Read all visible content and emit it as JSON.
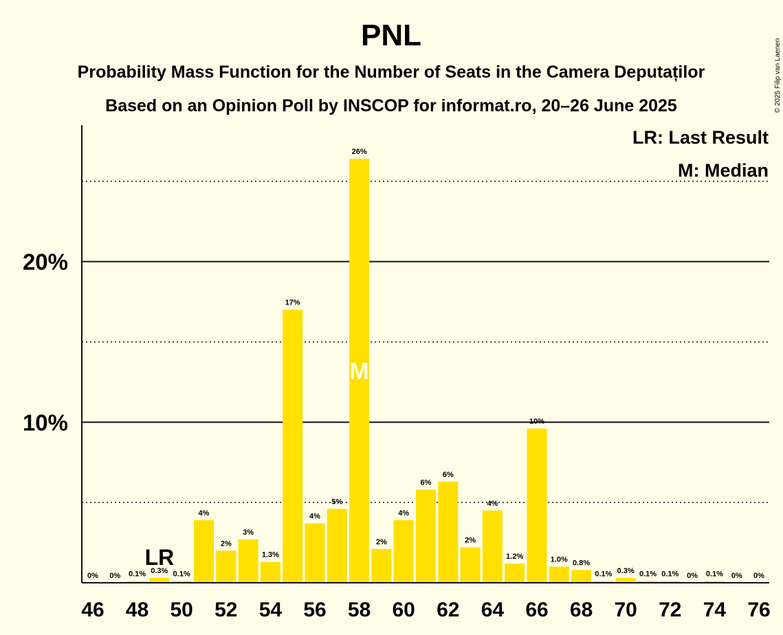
{
  "chart_data": {
    "type": "bar",
    "title": "PNL",
    "subtitle": "Probability Mass Function for the Number of Seats in the Camera Deputaților",
    "subtitle2": "Based on an Opinion Poll by INSCOP for informat.ro, 20–26 June 2025",
    "copyright": "© 2025 Filip van Laenen",
    "legend": {
      "position": "top-right",
      "items": [
        "LR: Last Result",
        "M: Median"
      ]
    },
    "bar_color": "#FFE000",
    "x": [
      46,
      47,
      48,
      49,
      50,
      51,
      52,
      53,
      54,
      55,
      56,
      57,
      58,
      59,
      60,
      61,
      62,
      63,
      64,
      65,
      66,
      67,
      68,
      69,
      70,
      71,
      72,
      73,
      74,
      75,
      76
    ],
    "values": [
      0,
      0,
      0.1,
      0.3,
      0.1,
      3.9,
      2.0,
      2.7,
      1.3,
      17.0,
      3.7,
      4.6,
      26.4,
      2.1,
      3.9,
      5.8,
      6.3,
      2.2,
      4.5,
      1.2,
      9.6,
      1.0,
      0.8,
      0.1,
      0.3,
      0.1,
      0.1,
      0,
      0.1,
      0,
      0
    ],
    "value_labels": [
      "0%",
      "0%",
      "0.1%",
      "0.3%",
      "0.1%",
      "4%",
      "2%",
      "3%",
      "1.3%",
      "17%",
      "4%",
      "5%",
      "26%",
      "2%",
      "4%",
      "6%",
      "6%",
      "2%",
      "4%",
      "1.2%",
      "10%",
      "1.0%",
      "0.8%",
      "0.1%",
      "0.3%",
      "0.1%",
      "0.1%",
      "0%",
      "0.1%",
      "0%",
      "0%"
    ],
    "xticks": [
      46,
      48,
      50,
      52,
      54,
      56,
      58,
      60,
      62,
      64,
      66,
      68,
      70,
      72,
      74,
      76
    ],
    "yticks": [
      {
        "value": 10,
        "label": "10%"
      },
      {
        "value": 20,
        "label": "20%"
      }
    ],
    "ylim": [
      0,
      28.5
    ],
    "grid": {
      "solid": [
        10,
        20
      ],
      "dotted": [
        5,
        15,
        25
      ]
    },
    "last_result": {
      "seat": 49,
      "label": "LR"
    },
    "median": {
      "seat": 58,
      "label": "M"
    }
  }
}
